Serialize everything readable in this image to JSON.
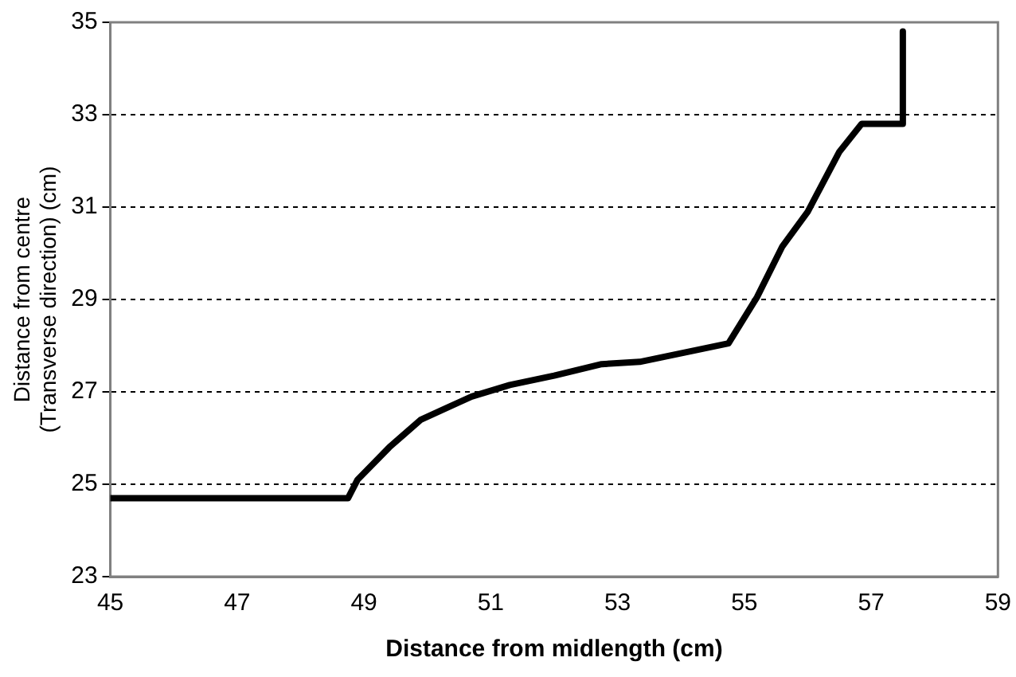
{
  "chart_data": {
    "type": "line",
    "xlabel": "Distance from midlength (cm)",
    "ylabel": "Distance from centre (Transverse direction) (cm)",
    "xlim": [
      45,
      59
    ],
    "xticks": [
      45,
      47,
      49,
      51,
      53,
      55,
      57,
      59
    ],
    "ylim": [
      23,
      35
    ],
    "yticks": [
      23,
      25,
      27,
      29,
      31,
      33,
      35
    ],
    "grid": "y",
    "legend": false,
    "marker": "none",
    "line_style": "solid",
    "series": [
      {
        "color": "#000000",
        "x": [
          45,
          48.75,
          48.9,
          49.4,
          49.9,
          50.7,
          51.3,
          52.0,
          52.75,
          53.35,
          54.75,
          55.2,
          55.6,
          56.0,
          56.5,
          56.85,
          57.5,
          57.5
        ],
        "values": [
          24.7,
          24.7,
          25.1,
          25.8,
          26.4,
          26.9,
          27.15,
          27.35,
          27.6,
          27.65,
          28.05,
          29.05,
          30.15,
          30.9,
          32.2,
          32.8,
          32.8,
          34.8
        ]
      }
    ]
  }
}
